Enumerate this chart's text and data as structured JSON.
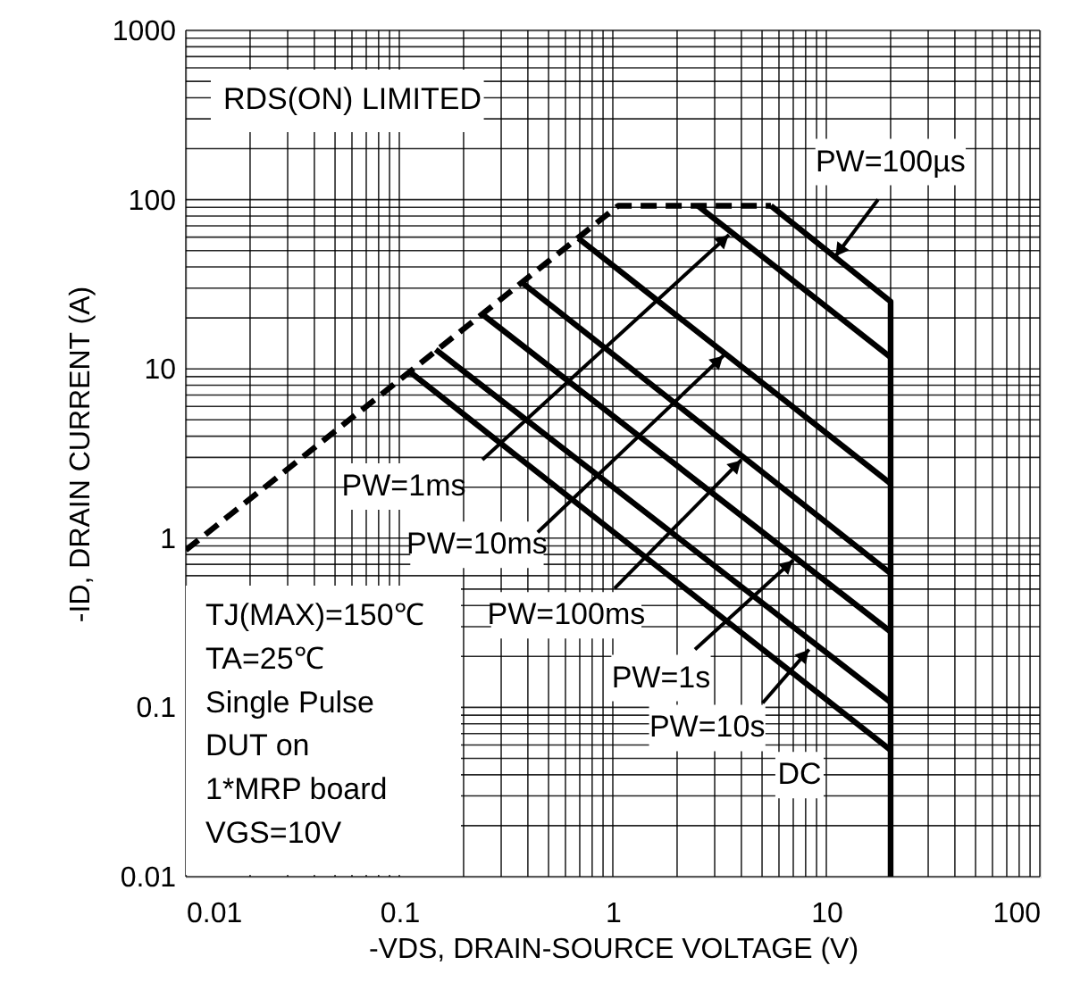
{
  "chart_data": {
    "type": "line",
    "xlabel": "-VDS, DRAIN-SOURCE VOLTAGE (V)",
    "ylabel": "-ID, DRAIN CURRENT (A)",
    "log": "xy",
    "xlim": [
      0.01,
      100
    ],
    "ylim": [
      0.01,
      1000
    ],
    "xticks": [
      0.01,
      0.1,
      1,
      10,
      100
    ],
    "yticks": [
      0.01,
      0.1,
      1,
      10,
      100,
      1000
    ],
    "grid": true,
    "line_style": "solid",
    "series": [
      {
        "color": "#000000",
        "line_style": "dashed",
        "x": [
          0.01,
          1.06,
          5.5
        ],
        "values": [
          0.85,
          92,
          92
        ]
      },
      {
        "color": "#000000",
        "x": [
          5.5,
          20,
          20
        ],
        "values": [
          92,
          25,
          0.01
        ]
      },
      {
        "color": "#000000",
        "x": [
          2.5,
          20
        ],
        "values": [
          92,
          11.7
        ]
      },
      {
        "color": "#000000",
        "x": [
          0.69,
          20
        ],
        "values": [
          59,
          2.1
        ]
      },
      {
        "color": "#000000",
        "x": [
          0.38,
          20
        ],
        "values": [
          32,
          0.62
        ]
      },
      {
        "color": "#000000",
        "x": [
          0.245,
          20
        ],
        "values": [
          21,
          0.28
        ]
      },
      {
        "color": "#000000",
        "x": [
          0.148,
          20
        ],
        "values": [
          13,
          0.107
        ]
      },
      {
        "color": "#000000",
        "x": [
          0.112,
          20
        ],
        "values": [
          9.6,
          0.056
        ]
      }
    ],
    "annotations": [
      "RDS(ON) LIMITED",
      {
        "text": "PW=100µs",
        "x": 11,
        "y": 46
      },
      {
        "text": "PW=1ms",
        "x": 3.5,
        "y": 62
      },
      {
        "text": "PW=10ms",
        "x": 3.3,
        "y": 12
      },
      {
        "text": "PW=100ms",
        "x": 4,
        "y": 2.9
      },
      {
        "text": "PW=1s",
        "x": 7,
        "y": 0.74
      },
      {
        "text": "PW=10s",
        "x": 8.3,
        "y": 0.22
      },
      {
        "text": "DC",
        "x": 20,
        "y": 0.056
      },
      "TJ(MAX)=150℃",
      "TA=25℃",
      "Single Pulse",
      "DUT on",
      "1*MRP board",
      "VGS=10V"
    ]
  }
}
